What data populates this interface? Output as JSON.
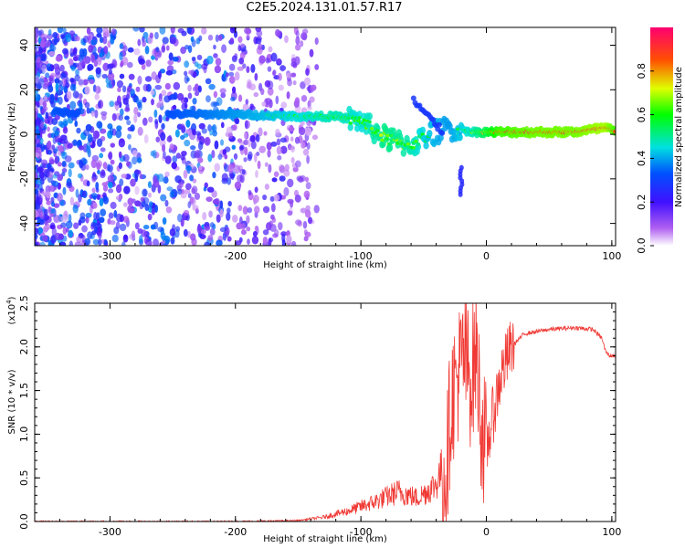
{
  "title": "C2E5.2024.131.01.57.R17",
  "chart_data": [
    {
      "type": "heatmap",
      "xlabel": "Height of straight line (km)",
      "ylabel": "Frequency (Hz)",
      "xlim": [
        -360,
        103
      ],
      "ylim": [
        -50,
        48
      ],
      "xticks": [
        -300,
        -200,
        -100,
        0,
        100
      ],
      "yticks": [
        -40,
        -20,
        0,
        20,
        40
      ],
      "colorbar": {
        "label": "Normalized spectral amplitude",
        "range": [
          0.0,
          1.0
        ],
        "ticks": [
          "0.0",
          "0.2",
          "0.4",
          "0.6",
          "0.8"
        ],
        "colormap": "rainbow (white-violet-blue-cyan-green-yellow-red-magenta)"
      },
      "ridge": [
        {
          "x": -340,
          "y": 10,
          "amp": 0.3
        },
        {
          "x": -300,
          "y": 9,
          "amp": 0.25
        },
        {
          "x": -250,
          "y": 9,
          "amp": 0.3
        },
        {
          "x": -200,
          "y": 9,
          "amp": 0.4
        },
        {
          "x": -150,
          "y": 8,
          "amp": 0.5
        },
        {
          "x": -120,
          "y": 8,
          "amp": 0.55
        },
        {
          "x": -100,
          "y": 6,
          "amp": 0.5
        },
        {
          "x": -80,
          "y": -2,
          "amp": 0.6
        },
        {
          "x": -60,
          "y": -5,
          "amp": 0.55
        },
        {
          "x": -45,
          "y": 0,
          "amp": 0.45
        },
        {
          "x": -30,
          "y": 3,
          "amp": 0.4
        },
        {
          "x": -10,
          "y": 1,
          "amp": 0.55
        },
        {
          "x": 10,
          "y": 1,
          "amp": 0.8
        },
        {
          "x": 40,
          "y": 1,
          "amp": 0.85
        },
        {
          "x": 70,
          "y": 1,
          "amp": 0.85
        },
        {
          "x": 95,
          "y": 3,
          "amp": 0.9
        },
        {
          "x": 103,
          "y": 1,
          "amp": 0.8
        }
      ]
    },
    {
      "type": "line",
      "xlabel": "Height of straight line (km)",
      "ylabel": "SNR (10 * v/v)",
      "yscale_label": "(x10",
      "yscale_exp": "4",
      "yscale_close": ")",
      "xlim": [
        -360,
        103
      ],
      "ylim": [
        0.0,
        2.5
      ],
      "xticks": [
        -300,
        -200,
        -100,
        0,
        100
      ],
      "ytick_labels": [
        "0.0",
        "0.5",
        "1.0",
        "1.5",
        "2.0",
        "2.5"
      ],
      "series": [
        {
          "color": "#f03a35",
          "x": [
            -360,
            -300,
            -200,
            -150,
            -130,
            -110,
            -90,
            -70,
            -55,
            -40,
            -32,
            -28,
            -22,
            -18,
            -12,
            -8,
            -4,
            0,
            5,
            12,
            20,
            30,
            50,
            70,
            85,
            92,
            95,
            98,
            103
          ],
          "y": [
            0.0,
            0.0,
            0.0,
            0.01,
            0.04,
            0.1,
            0.18,
            0.28,
            0.22,
            0.35,
            0.6,
            1.4,
            1.7,
            1.9,
            1.6,
            2.0,
            1.1,
            0.8,
            1.2,
            1.7,
            2.0,
            2.15,
            2.2,
            2.22,
            2.2,
            2.1,
            1.95,
            1.9,
            1.9
          ]
        }
      ]
    }
  ]
}
